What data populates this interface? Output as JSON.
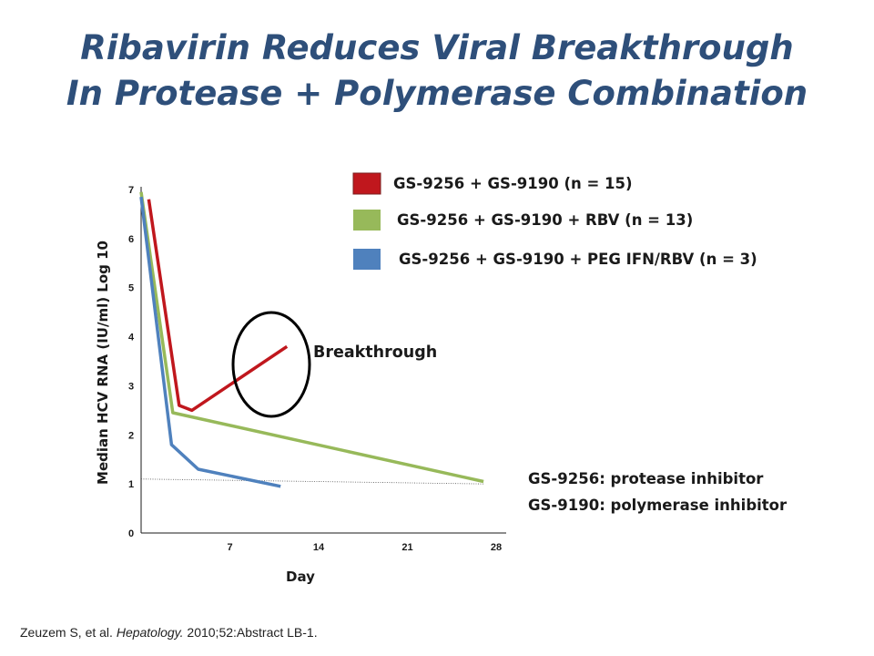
{
  "title": {
    "line1": "Ribavirin Reduces Viral Breakthrough",
    "line2": "In Protease + Polymerase Combination"
  },
  "chart_data": {
    "type": "line",
    "xlabel": "Day",
    "ylabel": "Median HCV RNA (IU/ml) Log 10",
    "xlim": [
      0,
      28
    ],
    "ylim": [
      0,
      7
    ],
    "x_ticks": [
      7,
      14,
      21,
      28
    ],
    "y_ticks": [
      0,
      1,
      2,
      3,
      4,
      5,
      6,
      7
    ],
    "grid": false,
    "legend_position": "top-right",
    "series": [
      {
        "name": "GS-9256 + GS-9190 (n = 15)",
        "color": "#c0171d",
        "points": [
          [
            0.6,
            6.8
          ],
          [
            3.0,
            2.6
          ],
          [
            4.0,
            2.5
          ],
          [
            11.5,
            3.8
          ]
        ]
      },
      {
        "name": "GS-9256 + GS-9190 + RBV (n = 13)",
        "color": "#97b95a",
        "points": [
          [
            0,
            6.95
          ],
          [
            2.5,
            2.45
          ],
          [
            27,
            1.05
          ]
        ]
      },
      {
        "name": "GS-9256 + GS-9190 + PEG IFN/RBV (n = 3)",
        "color": "#4f81bd",
        "points": [
          [
            0,
            6.85
          ],
          [
            2.4,
            1.8
          ],
          [
            4.5,
            1.3
          ],
          [
            11.0,
            0.95
          ]
        ]
      }
    ],
    "reference_line": {
      "y": [
        1.1,
        1.0
      ],
      "x": [
        0,
        27
      ]
    },
    "annotations": {
      "breakthrough": "Breakthrough",
      "note1": "GS-9256: protease inhibitor",
      "note2": "GS-9190: polymerase inhibitor"
    }
  },
  "citation": {
    "authors": "Zeuzem S, et al.",
    "journal": "Hepatology.",
    "rest": "2010;52:Abstract LB-1."
  }
}
